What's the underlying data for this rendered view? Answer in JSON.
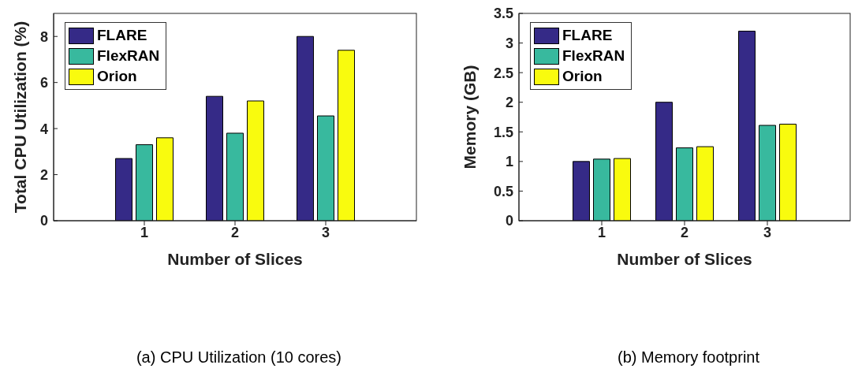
{
  "chart_data": [
    {
      "type": "bar",
      "ylabel": "Total CPU Utilization (%)",
      "xlabel": "Number of Slices",
      "annotations": [
        "(a) CPU Utilization (10 cores)"
      ],
      "categories": [
        "1",
        "2",
        "3"
      ],
      "ylim": [
        0,
        9
      ],
      "yticks": [
        0,
        2,
        4,
        6,
        8
      ],
      "legend": "top left",
      "grid": false,
      "series": [
        {
          "name": "FLARE",
          "color": "#352a87",
          "values": [
            2.7,
            5.4,
            8.0
          ]
        },
        {
          "name": "FlexRAN",
          "color": "#38b99e",
          "values": [
            3.3,
            3.8,
            4.55
          ]
        },
        {
          "name": "Orion",
          "color": "#f9fb0e",
          "values": [
            3.6,
            5.2,
            7.4
          ]
        }
      ]
    },
    {
      "type": "bar",
      "ylabel": "Memory (GB)",
      "xlabel": "Number of Slices",
      "annotations": [
        "(b) Memory footprint"
      ],
      "categories": [
        "1",
        "2",
        "3"
      ],
      "ylim": [
        0,
        3.5
      ],
      "yticks": [
        0,
        0.5,
        1,
        1.5,
        2,
        2.5,
        3,
        3.5
      ],
      "legend": "top left",
      "grid": false,
      "series": [
        {
          "name": "FLARE",
          "color": "#352a87",
          "values": [
            1.0,
            2.0,
            3.2
          ]
        },
        {
          "name": "FlexRAN",
          "color": "#38b99e",
          "values": [
            1.04,
            1.23,
            1.61
          ]
        },
        {
          "name": "Orion",
          "color": "#f9fb0e",
          "values": [
            1.05,
            1.25,
            1.63
          ]
        }
      ]
    }
  ]
}
